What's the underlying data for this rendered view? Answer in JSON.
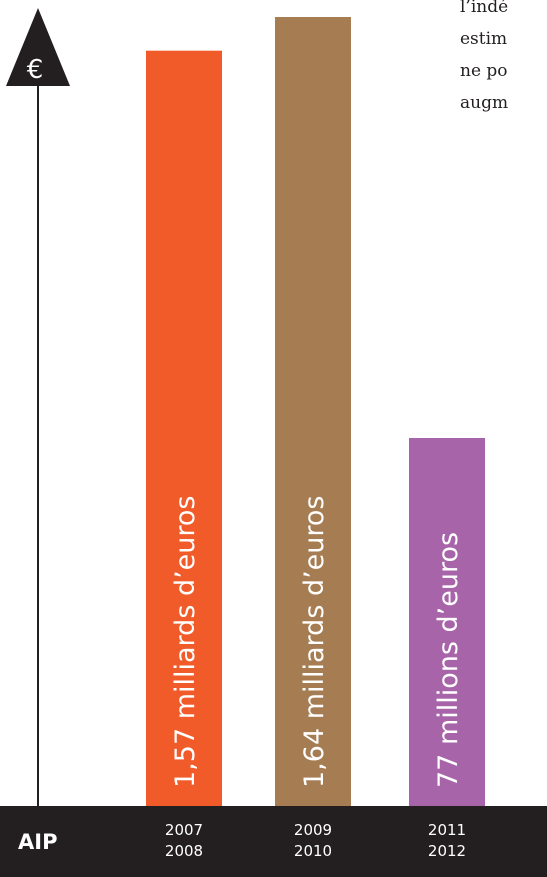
{
  "side_text": {
    "lines": [
      "l’indé",
      "estim",
      "ne po",
      "augm"
    ]
  },
  "chart_data": {
    "type": "bar",
    "ylabel": "€",
    "xlabel": "AIP",
    "categories": [
      [
        "2007",
        "2008"
      ],
      [
        "2009",
        "2010"
      ],
      [
        "2011",
        "2012"
      ]
    ],
    "series": [
      {
        "values": [
          1570,
          1640,
          77
        ],
        "value_labels": [
          "1,57 milliards d’euros",
          "1,64 milliards d’euros",
          "77 millions d’euros"
        ],
        "colors": [
          "#f15a29",
          "#a67c52",
          "#a864a8"
        ]
      }
    ]
  },
  "colors": {
    "axis": "#231f20",
    "footer_bg": "#231f20",
    "label_text": "#ffffff"
  }
}
